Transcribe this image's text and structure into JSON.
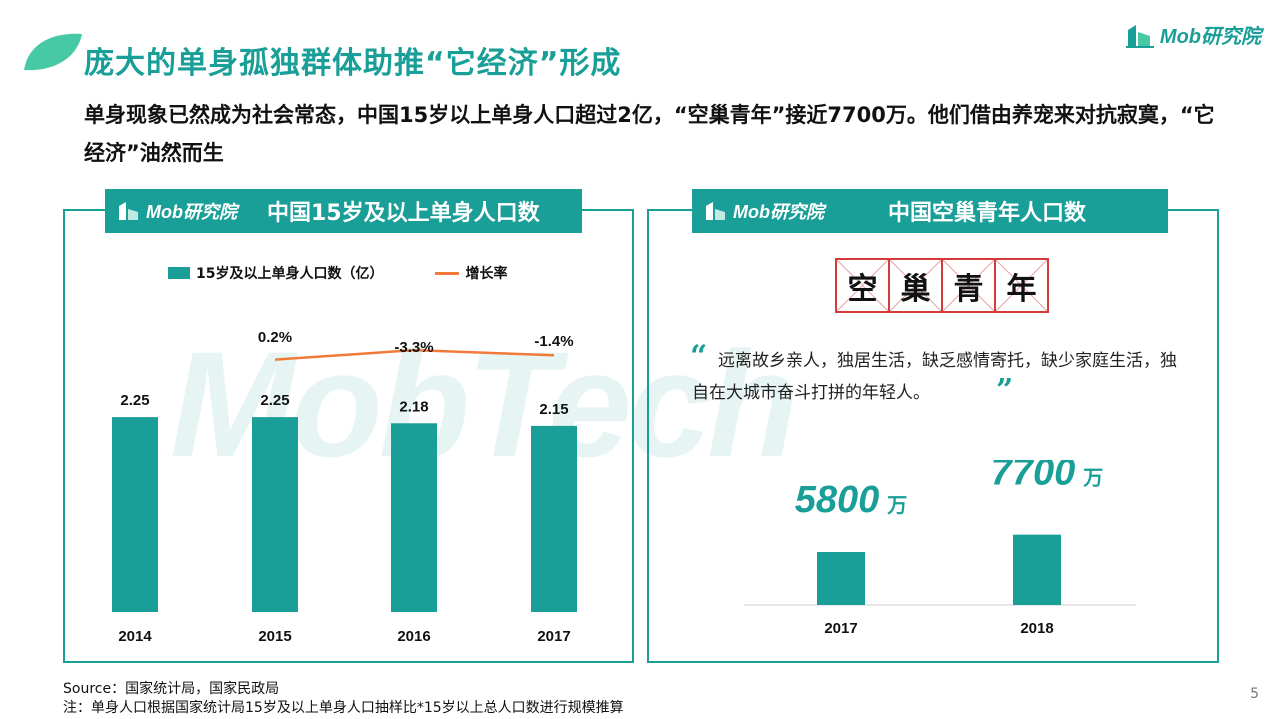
{
  "title": "庞大的单身孤独群体助推“它经济”形成",
  "brand": "Mob研究院",
  "subtitle": "单身现象已然成为社会常态，中国15岁以上单身人口超过2亿，“空巢青年”接近7700万。他们借由养宠来对抗寂寞，“它经济”油然而生",
  "watermark": "MobTech",
  "left_panel": {
    "logo": "Mob研究院",
    "title": "中国15岁及以上单身人口数",
    "legend_bar": "15岁及以上单身人口数（亿）",
    "legend_line": "增长率"
  },
  "right_panel": {
    "logo": "Mob研究院",
    "title": "中国空巢青年人口数",
    "word": [
      "空",
      "巢",
      "青",
      "年"
    ],
    "quote_open": "“",
    "quote_close": "”",
    "quote": "远离故乡亲人，独居生活，缺乏感情寄托，缺少家庭生活，独自在大城市奋斗打拼的年轻人。"
  },
  "chart_data": [
    {
      "type": "bar",
      "categories": [
        "2014",
        "2015",
        "2016",
        "2017"
      ],
      "series": [
        {
          "name": "15岁及以上单身人口数（亿）",
          "values": [
            2.25,
            2.25,
            2.18,
            2.15
          ],
          "labels": [
            "2.25",
            "2.25",
            "2.18",
            "2.15"
          ],
          "color": "#1a9e98"
        },
        {
          "name": "增长率",
          "type": "line",
          "values": [
            null,
            0.2,
            -3.3,
            -1.4
          ],
          "labels": [
            "",
            "0.2%",
            "-3.3%",
            "-1.4%"
          ],
          "color": "#f07a3a"
        }
      ]
    },
    {
      "type": "bar",
      "categories": [
        "2017",
        "2018"
      ],
      "values": [
        5800,
        7700
      ],
      "value_labels": [
        "5800",
        "7700"
      ],
      "unit": "万",
      "color": "#1a9e98"
    }
  ],
  "colors": {
    "accent": "#1a9e98",
    "line": "#f07a3a",
    "word_border": "#d63b3b"
  },
  "source": "Source：国家统计局，国家民政局",
  "note": "注：单身人口根据国家统计局15岁及以上单身人口抽样比*15岁以上总人口数进行规模推算",
  "page_number": "5"
}
